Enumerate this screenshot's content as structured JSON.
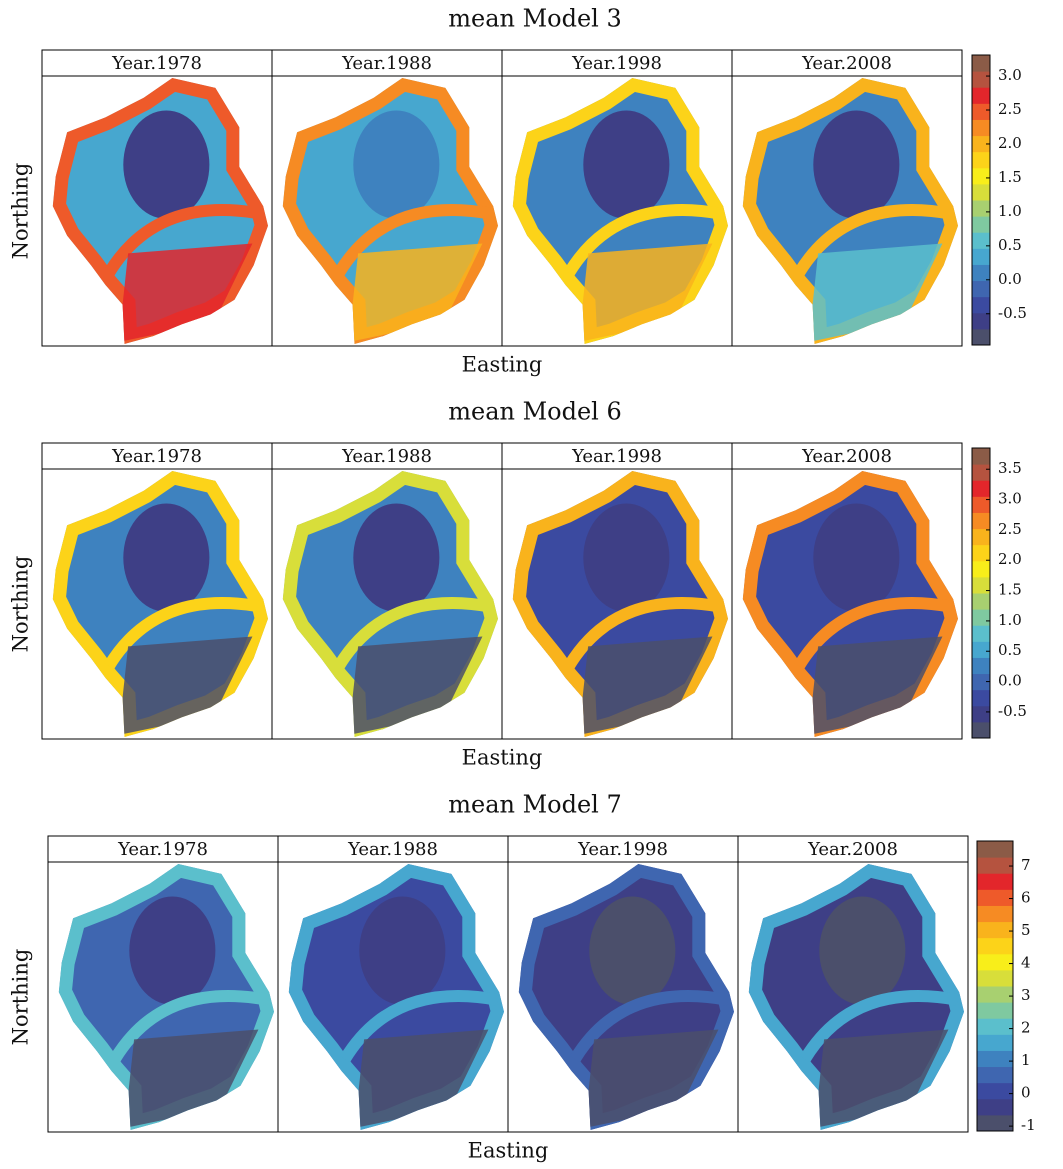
{
  "chart_data": [
    {
      "type": "heatmap",
      "title": "mean Model 3",
      "xlabel": "Easting",
      "ylabel": "Northing",
      "panels": [
        "Year.1978",
        "Year.1988",
        "Year.1998",
        "Year.2008"
      ],
      "colorbar": {
        "lim": [
          -0.96,
          3.31
        ],
        "ticks": [
          -0.5,
          0.0,
          0.5,
          1.0,
          1.5,
          2.0,
          2.5,
          3.0
        ],
        "tick_labels": [
          "-0.5",
          "0.0",
          "0.5",
          "1.0",
          "1.5",
          "2.0",
          "2.5",
          "3.0"
        ],
        "colors": [
          "#4b4f6b",
          "#3e3f86",
          "#3b4aa0",
          "#3f66b0",
          "#3e82bf",
          "#47a7cf",
          "#5bbfcc",
          "#7fc9a0",
          "#a8d070",
          "#d8de3a",
          "#f8ee1a",
          "#fcd319",
          "#f9b31c",
          "#f68b23",
          "#ee5a2a",
          "#e3262b",
          "#b5533f",
          "#8b5b47"
        ]
      }
    },
    {
      "type": "heatmap",
      "title": "mean Model 6",
      "xlabel": "Easting",
      "ylabel": "Northing",
      "panels": [
        "Year.1978",
        "Year.1988",
        "Year.1998",
        "Year.2008"
      ],
      "colorbar": {
        "lim": [
          -0.93,
          3.85
        ],
        "ticks": [
          -0.5,
          0.0,
          0.5,
          1.0,
          1.5,
          2.0,
          2.5,
          3.0,
          3.5
        ],
        "tick_labels": [
          "-0.5",
          "0.0",
          "0.5",
          "1.0",
          "1.5",
          "2.0",
          "2.5",
          "3.0",
          "3.5"
        ],
        "colors": [
          "#4b4f6b",
          "#3e3f86",
          "#3b4aa0",
          "#3f66b0",
          "#3e82bf",
          "#47a7cf",
          "#5bbfcc",
          "#7fc9a0",
          "#a8d070",
          "#d8de3a",
          "#f8ee1a",
          "#fcd319",
          "#f9b31c",
          "#f68b23",
          "#ee5a2a",
          "#e3262b",
          "#b5533f",
          "#8b5b47"
        ]
      }
    },
    {
      "type": "heatmap",
      "title": "mean Model 7",
      "xlabel": "Easting",
      "ylabel": "Northing",
      "panels": [
        "Year.1978",
        "Year.1988",
        "Year.1998",
        "Year.2008"
      ],
      "colorbar": {
        "lim": [
          -1.15,
          7.77
        ],
        "ticks": [
          -1,
          0,
          1,
          2,
          3,
          4,
          5,
          6,
          7
        ],
        "colors": [
          "#4b4f6b",
          "#3e3f86",
          "#3b4aa0",
          "#3f66b0",
          "#3e82bf",
          "#47a7cf",
          "#5bbfcc",
          "#7fc9a0",
          "#a8d070",
          "#d8de3a",
          "#f8ee1a",
          "#fcd319",
          "#f9b31c",
          "#f68b23",
          "#ee5a2a",
          "#e3262b",
          "#b5533f",
          "#8b5b47"
        ]
      }
    }
  ]
}
